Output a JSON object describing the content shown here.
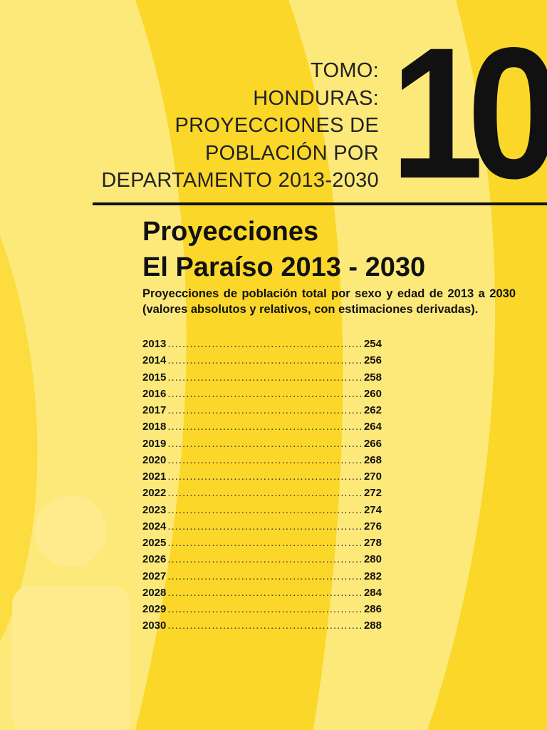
{
  "colors": {
    "background": "#fde97a",
    "band": "#fbd72a",
    "figure": "#feeb8e",
    "text": "#111111"
  },
  "header": {
    "lines": [
      "TOMO:",
      "HONDURAS:",
      "PROYECCIONES  DE",
      "POBLACIÓN POR",
      "DEPARTAMENTO  2013-2030"
    ],
    "volume_number": "10"
  },
  "title": {
    "line1": "Proyecciones",
    "line2": "El Paraíso 2013 - 2030"
  },
  "subtitle": "Proyecciones de  población total por sexo y edad de 2013 a 2030 (valores absolutos y relativos, con estimaciones derivadas).",
  "toc": [
    {
      "year": "2013",
      "page": "254"
    },
    {
      "year": "2014",
      "page": "256"
    },
    {
      "year": "2015",
      "page": "258"
    },
    {
      "year": "2016",
      "page": "260"
    },
    {
      "year": "2017",
      "page": "262"
    },
    {
      "year": "2018",
      "page": "264"
    },
    {
      "year": "2019",
      "page": "266"
    },
    {
      "year": "2020",
      "page": "268"
    },
    {
      "year": "2021",
      "page": "270"
    },
    {
      "year": "2022",
      "page": "272"
    },
    {
      "year": "2023",
      "page": "274"
    },
    {
      "year": "2024",
      "page": "276"
    },
    {
      "year": "2025",
      "page": "278"
    },
    {
      "year": "2026",
      "page": "280"
    },
    {
      "year": "2027",
      "page": "282"
    },
    {
      "year": "2028",
      "page": "284"
    },
    {
      "year": "2029",
      "page": "286"
    },
    {
      "year": "2030",
      "page": "288"
    }
  ],
  "icons": {
    "person": "person-silhouette-icon"
  }
}
